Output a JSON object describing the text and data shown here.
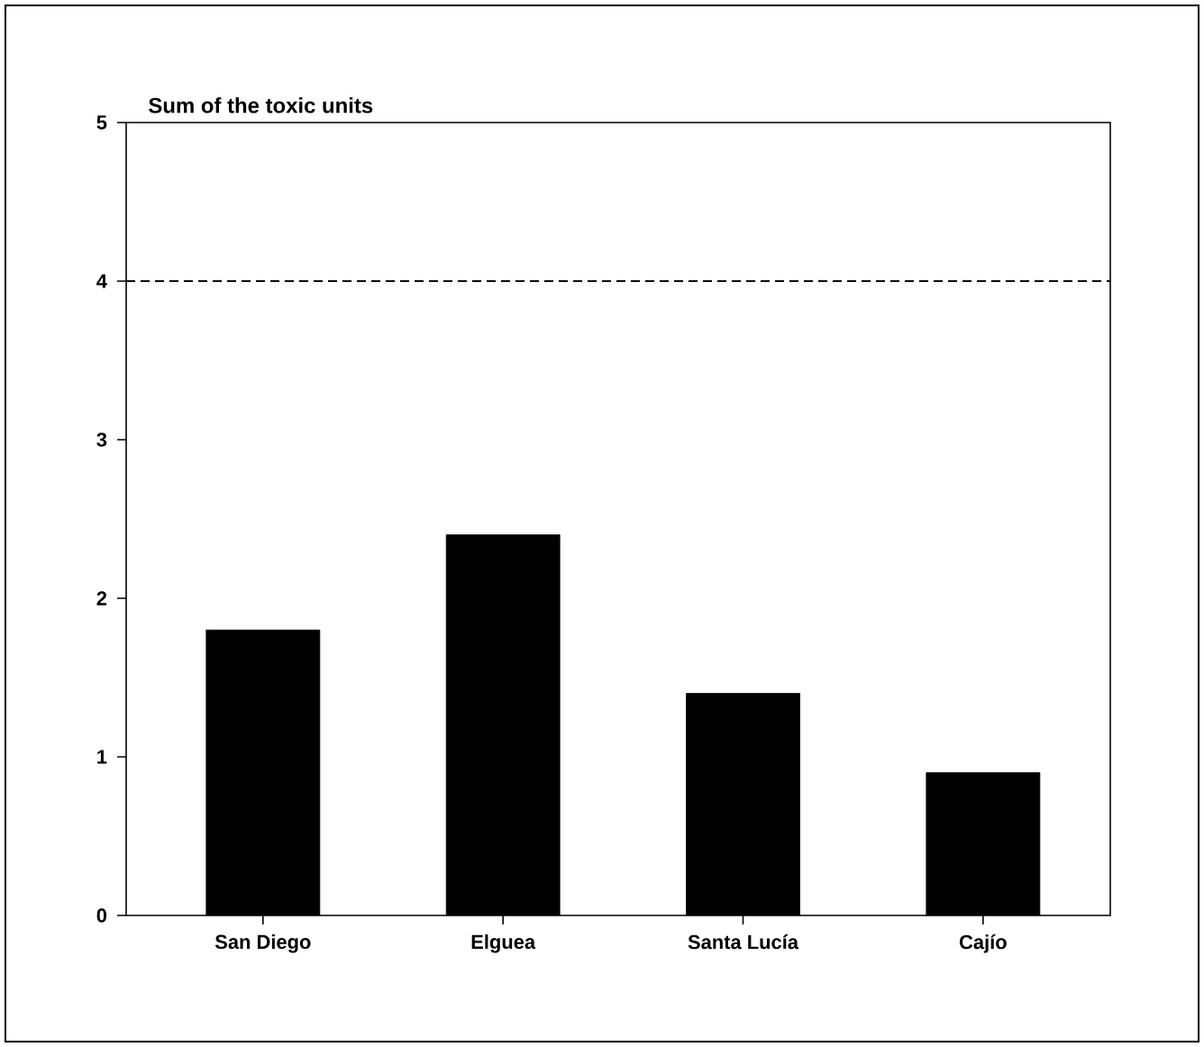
{
  "chart_data": {
    "type": "bar",
    "ylabel": "Sum of the toxic units",
    "categories": [
      "San Diego",
      "Elguea",
      "Santa Lucía",
      "Cajío"
    ],
    "values": [
      1.8,
      2.4,
      1.4,
      0.9
    ],
    "color": "#000000",
    "ylim": [
      0,
      5
    ],
    "yticks": [
      0,
      1,
      2,
      3,
      4,
      5
    ],
    "grid": false,
    "ref_lines": [
      {
        "axis": "y",
        "value": 4,
        "color": "#000000",
        "line_style": "dashed"
      }
    ]
  }
}
